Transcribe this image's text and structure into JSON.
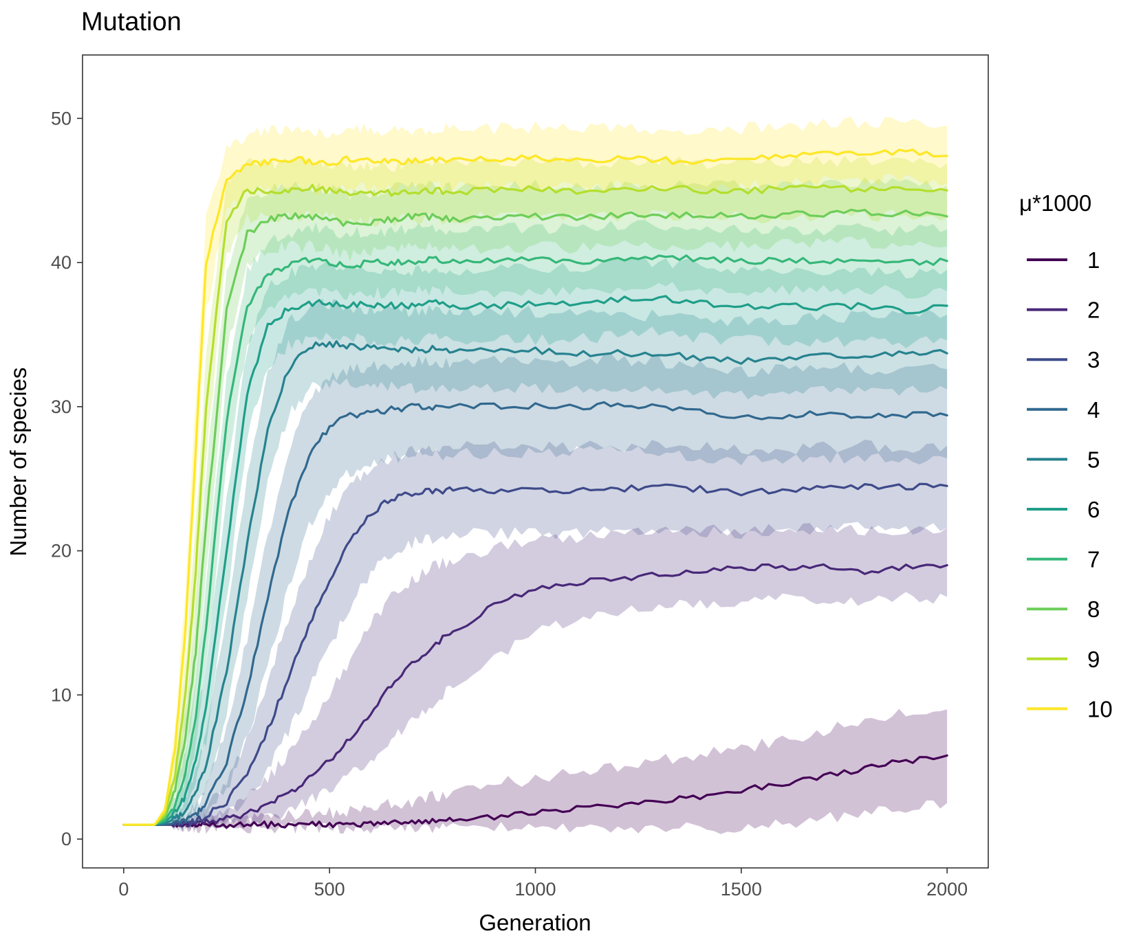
{
  "chart_data": {
    "type": "line",
    "title": "Mutation",
    "xlabel": "Generation",
    "ylabel": "Number of species",
    "xlim": [
      -100,
      2100
    ],
    "ylim": [
      -2,
      54.4
    ],
    "xticks": [
      0,
      500,
      1000,
      1500,
      2000
    ],
    "xtick_labels": [
      "0",
      "500",
      "1000",
      "1500",
      "2000"
    ],
    "yticks": [
      0,
      10,
      20,
      30,
      40,
      50
    ],
    "ytick_labels": [
      "0",
      "10",
      "20",
      "30",
      "40",
      "50"
    ],
    "grid": false,
    "legend": {
      "title": "μ*1000",
      "position": "right"
    },
    "band": "shaded ribbon around each mean line",
    "x_points": [
      0,
      25,
      50,
      75,
      100,
      125,
      150,
      175,
      200,
      250,
      300,
      350,
      400,
      450,
      500,
      550,
      600,
      650,
      700,
      750,
      800,
      900,
      1000,
      1100,
      1200,
      1300,
      1400,
      1500,
      1600,
      1700,
      1800,
      1900,
      2000
    ],
    "series": [
      {
        "name": "1",
        "color": "#440154",
        "values": [
          1,
          1,
          1,
          1,
          1,
          1,
          1,
          1,
          1,
          1,
          1,
          1,
          1,
          1,
          1,
          1.05,
          1.1,
          1.15,
          1.2,
          1.3,
          1.4,
          1.5,
          1.9,
          2.1,
          2.4,
          2.7,
          3.0,
          3.4,
          3.8,
          4.3,
          4.9,
          5.4,
          5.8
        ],
        "lower": [
          1,
          1,
          1,
          1,
          1,
          0.95,
          0.9,
          0.85,
          0.8,
          0.8,
          0.8,
          0.8,
          0.8,
          0.8,
          0.8,
          0.8,
          0.8,
          0.8,
          0.8,
          0.8,
          0.8,
          0.8,
          0.8,
          0.8,
          0.8,
          0.8,
          0.8,
          0.8,
          1.0,
          1.4,
          1.8,
          2.2,
          2.5
        ],
        "upper": [
          1,
          1,
          1,
          1,
          1,
          1.05,
          1.1,
          1.15,
          1.2,
          1.3,
          1.4,
          1.5,
          1.6,
          1.7,
          1.8,
          2.0,
          2.2,
          2.4,
          2.6,
          2.9,
          3.2,
          3.8,
          4.2,
          4.6,
          5.0,
          5.4,
          5.8,
          6.3,
          6.8,
          7.5,
          8.2,
          8.8,
          9.0
        ]
      },
      {
        "name": "2",
        "color": "#482878",
        "values": [
          1,
          1,
          1,
          1,
          1,
          1,
          1.05,
          1.1,
          1.2,
          1.4,
          1.8,
          2.4,
          3.2,
          4.2,
          5.4,
          7.0,
          8.8,
          10.6,
          12.2,
          13.4,
          14.4,
          16.2,
          17.3,
          17.8,
          18.0,
          18.3,
          18.6,
          18.8,
          18.9,
          18.9,
          18.6,
          18.9,
          19.0
        ],
        "lower": [
          1,
          1,
          1,
          1,
          1,
          0.95,
          0.9,
          0.9,
          0.9,
          1.0,
          1.1,
          1.4,
          1.9,
          2.6,
          3.4,
          4.5,
          5.6,
          6.9,
          8.2,
          9.4,
          10.6,
          12.6,
          14.3,
          15.2,
          15.7,
          16.1,
          16.3,
          16.5,
          16.6,
          16.7,
          16.6,
          16.7,
          16.8
        ],
        "upper": [
          1,
          1,
          1,
          1,
          1,
          1.05,
          1.2,
          1.3,
          1.5,
          2.0,
          3.0,
          4.2,
          5.8,
          7.8,
          10.0,
          12.5,
          15.0,
          16.8,
          18.0,
          18.8,
          19.4,
          20.2,
          20.6,
          20.9,
          21.1,
          21.3,
          21.4,
          21.4,
          21.5,
          21.5,
          21.3,
          21.5,
          21.6
        ]
      },
      {
        "name": "3",
        "color": "#3e4a89",
        "values": [
          1,
          1,
          1,
          1,
          1,
          1.05,
          1.1,
          1.3,
          1.6,
          2.6,
          4.6,
          7.6,
          11.2,
          14.8,
          18.0,
          20.8,
          22.6,
          23.6,
          24.0,
          24.1,
          24.2,
          24.2,
          24.2,
          24.2,
          24.3,
          24.4,
          24.3,
          24.0,
          24.2,
          24.4,
          24.5,
          24.4,
          24.5
        ],
        "lower": [
          1,
          1,
          1,
          1,
          1,
          0.95,
          0.95,
          1.0,
          1.1,
          1.6,
          2.8,
          4.8,
          7.4,
          10.4,
          13.4,
          16.2,
          18.4,
          19.8,
          20.5,
          20.9,
          21.1,
          21.2,
          21.2,
          21.3,
          21.4,
          21.5,
          21.4,
          21.2,
          21.3,
          21.5,
          21.6,
          21.5,
          21.6
        ],
        "upper": [
          1,
          1,
          1,
          1,
          1,
          1.1,
          1.3,
          1.7,
          2.3,
          4.0,
          7.0,
          11.0,
          15.2,
          19.2,
          22.4,
          24.6,
          25.8,
          26.5,
          26.9,
          27.1,
          27.2,
          27.2,
          27.2,
          27.2,
          27.3,
          27.3,
          27.2,
          27.0,
          27.1,
          27.2,
          27.3,
          27.2,
          27.3
        ]
      },
      {
        "name": "4",
        "color": "#31688e",
        "values": [
          1,
          1,
          1,
          1,
          1,
          1.1,
          1.3,
          1.7,
          2.5,
          5.4,
          10.4,
          16.8,
          22.6,
          26.6,
          28.6,
          29.4,
          29.6,
          29.8,
          30.0,
          30.0,
          30.0,
          30.0,
          30.1,
          30.0,
          30.2,
          30.0,
          29.6,
          29.2,
          29.4,
          29.5,
          29.4,
          29.4,
          29.4
        ],
        "lower": [
          1,
          1,
          1,
          1,
          1,
          1.0,
          1.0,
          1.2,
          1.6,
          3.4,
          7.0,
          12.0,
          17.4,
          21.6,
          24.2,
          25.4,
          26.0,
          26.4,
          26.6,
          26.7,
          26.7,
          26.8,
          26.8,
          26.8,
          26.9,
          26.8,
          26.5,
          26.2,
          26.4,
          26.5,
          26.4,
          26.4,
          26.4
        ],
        "upper": [
          1,
          1,
          1,
          1,
          1,
          1.2,
          1.6,
          2.3,
          3.6,
          7.8,
          14.0,
          21.0,
          26.8,
          30.4,
          32.0,
          32.6,
          32.8,
          33.0,
          33.1,
          33.1,
          33.1,
          33.1,
          33.2,
          33.1,
          33.3,
          33.1,
          32.8,
          32.4,
          32.6,
          32.7,
          32.6,
          32.6,
          32.6
        ]
      },
      {
        "name": "5",
        "color": "#26828e",
        "values": [
          1,
          1,
          1,
          1,
          1.1,
          1.4,
          2.0,
          3.2,
          5.2,
          11.6,
          20.6,
          28.4,
          32.6,
          34.2,
          34.4,
          34.2,
          34.1,
          34.0,
          33.9,
          34.0,
          33.9,
          33.8,
          33.9,
          33.7,
          33.7,
          33.6,
          33.4,
          33.2,
          33.4,
          33.5,
          33.6,
          33.7,
          33.7
        ],
        "lower": [
          1,
          1,
          1,
          1,
          1.0,
          1.1,
          1.4,
          2.2,
          3.6,
          8.6,
          16.8,
          24.8,
          29.4,
          31.2,
          31.6,
          31.6,
          31.5,
          31.4,
          31.3,
          31.4,
          31.3,
          31.3,
          31.3,
          31.2,
          31.2,
          31.1,
          30.9,
          30.7,
          30.9,
          31.0,
          31.1,
          31.2,
          31.2
        ],
        "upper": [
          1,
          1,
          1,
          1,
          1.2,
          1.8,
          2.8,
          4.6,
          7.4,
          15.2,
          25.0,
          32.2,
          35.8,
          37.0,
          37.1,
          36.9,
          36.8,
          36.7,
          36.6,
          36.7,
          36.6,
          36.5,
          36.6,
          36.4,
          36.4,
          36.3,
          36.1,
          35.9,
          36.1,
          36.2,
          36.3,
          36.4,
          36.4
        ]
      },
      {
        "name": "6",
        "color": "#1f9e89",
        "values": [
          1,
          1,
          1,
          1,
          1.2,
          1.8,
          3.0,
          5.4,
          9.2,
          20.0,
          31.0,
          35.6,
          36.8,
          37.2,
          37.2,
          37.0,
          37.1,
          37.0,
          37.0,
          37.2,
          37.0,
          37.0,
          37.1,
          37.1,
          37.4,
          37.6,
          37.2,
          37.0,
          37.0,
          36.9,
          37.0,
          36.6,
          37.0
        ],
        "lower": [
          1,
          1,
          1,
          1,
          1.0,
          1.3,
          2.0,
          3.8,
          6.8,
          16.6,
          27.8,
          32.8,
          34.3,
          34.7,
          34.8,
          34.6,
          34.7,
          34.6,
          34.6,
          34.8,
          34.6,
          34.6,
          34.7,
          34.7,
          35.0,
          35.2,
          34.8,
          34.6,
          34.6,
          34.5,
          34.6,
          34.3,
          34.6
        ],
        "upper": [
          1,
          1,
          1,
          1,
          1.4,
          2.4,
          4.2,
          7.6,
          12.4,
          23.6,
          34.0,
          38.2,
          39.3,
          39.7,
          39.7,
          39.5,
          39.6,
          39.5,
          39.5,
          39.7,
          39.5,
          39.5,
          39.6,
          39.6,
          39.9,
          40.1,
          39.7,
          39.5,
          39.5,
          39.4,
          39.5,
          39.1,
          39.5
        ]
      },
      {
        "name": "7",
        "color": "#35b779",
        "values": [
          1,
          1,
          1,
          1,
          1.3,
          2.4,
          4.6,
          8.6,
          14.8,
          29.0,
          37.0,
          39.2,
          39.8,
          40.2,
          40.0,
          39.8,
          40.0,
          40.0,
          40.1,
          40.2,
          40.0,
          40.1,
          40.2,
          40.1,
          40.3,
          40.4,
          40.2,
          40.1,
          40.2,
          40.1,
          40.2,
          40.0,
          40.1
        ],
        "lower": [
          1,
          1,
          1,
          1,
          1.1,
          1.8,
          3.2,
          6.4,
          11.8,
          25.8,
          34.4,
          37.0,
          37.7,
          38.1,
          37.9,
          37.7,
          37.9,
          37.9,
          38.0,
          38.1,
          37.9,
          38.0,
          38.1,
          38.0,
          38.2,
          38.3,
          38.1,
          38.0,
          38.1,
          38.0,
          38.1,
          37.9,
          38.0
        ],
        "upper": [
          1,
          1,
          1,
          1,
          1.5,
          3.0,
          6.0,
          10.8,
          17.8,
          32.0,
          39.4,
          41.4,
          42.0,
          42.4,
          42.2,
          42.0,
          42.2,
          42.2,
          42.3,
          42.4,
          42.2,
          42.3,
          42.4,
          42.3,
          42.5,
          42.6,
          42.4,
          42.3,
          42.4,
          42.3,
          42.4,
          42.2,
          42.3
        ]
      },
      {
        "name": "8",
        "color": "#6dcd59",
        "values": [
          1,
          1,
          1,
          1,
          1.5,
          3.4,
          7.0,
          13.0,
          21.8,
          36.6,
          42.0,
          43.0,
          43.2,
          43.2,
          43.0,
          42.6,
          42.8,
          43.0,
          43.2,
          43.2,
          43.0,
          43.1,
          43.2,
          43.1,
          43.3,
          43.2,
          43.3,
          43.2,
          43.3,
          43.4,
          43.5,
          43.4,
          43.2
        ],
        "lower": [
          1,
          1,
          1,
          1,
          1.2,
          2.6,
          5.2,
          10.2,
          18.2,
          33.8,
          39.8,
          40.9,
          41.1,
          41.1,
          40.9,
          40.5,
          40.7,
          40.9,
          41.1,
          41.1,
          40.9,
          41.0,
          41.1,
          41.0,
          41.2,
          41.1,
          41.2,
          41.1,
          41.2,
          41.3,
          41.4,
          41.3,
          41.1
        ],
        "upper": [
          1,
          1,
          1,
          1,
          1.8,
          4.2,
          8.8,
          15.8,
          25.4,
          39.4,
          44.2,
          45.1,
          45.3,
          45.3,
          45.1,
          44.7,
          44.9,
          45.1,
          45.3,
          45.3,
          45.1,
          45.2,
          45.3,
          45.2,
          45.4,
          45.3,
          45.4,
          45.3,
          45.4,
          45.5,
          45.6,
          45.5,
          45.3
        ]
      },
      {
        "name": "9",
        "color": "#b4de2c",
        "values": [
          1,
          1,
          1,
          1,
          1.7,
          4.6,
          10.0,
          18.6,
          30.0,
          43.0,
          45.0,
          45.0,
          45.0,
          45.2,
          45.0,
          44.8,
          44.8,
          44.8,
          44.8,
          45.0,
          44.9,
          45.0,
          45.1,
          45.0,
          45.1,
          45.2,
          45.0,
          45.0,
          45.1,
          45.2,
          45.0,
          45.2,
          45.0
        ],
        "lower": [
          1,
          1,
          1,
          1,
          1.3,
          3.6,
          7.8,
          15.4,
          26.4,
          40.6,
          43.0,
          43.1,
          43.1,
          43.3,
          43.1,
          42.9,
          42.9,
          42.9,
          42.9,
          43.1,
          43.0,
          43.1,
          43.2,
          43.1,
          43.2,
          43.3,
          43.1,
          43.1,
          43.2,
          43.3,
          43.1,
          43.3,
          43.1
        ],
        "upper": [
          1,
          1,
          1,
          1,
          2.1,
          5.6,
          12.2,
          21.8,
          33.6,
          45.4,
          47.0,
          46.9,
          46.9,
          47.1,
          46.9,
          46.7,
          46.7,
          46.7,
          46.7,
          46.9,
          46.8,
          46.9,
          47.0,
          46.9,
          47.0,
          47.1,
          46.9,
          46.9,
          47.0,
          47.1,
          46.9,
          47.1,
          46.9
        ]
      },
      {
        "name": "10",
        "color": "#fde725",
        "values": [
          1,
          1,
          1,
          1,
          2.0,
          6.4,
          14.6,
          27.0,
          40.0,
          45.8,
          46.8,
          47.0,
          47.2,
          47.0,
          46.8,
          47.2,
          47.1,
          47.0,
          47.0,
          47.1,
          47.2,
          47.2,
          47.3,
          47.1,
          47.2,
          47.1,
          47.0,
          47.2,
          47.4,
          47.5,
          47.6,
          47.7,
          47.4
        ],
        "lower": [
          1,
          1,
          1,
          1,
          1.6,
          5.2,
          12.2,
          23.8,
          36.6,
          43.8,
          44.9,
          45.1,
          45.3,
          45.1,
          44.9,
          45.3,
          45.2,
          45.1,
          45.1,
          45.2,
          45.3,
          45.3,
          45.4,
          45.2,
          45.3,
          45.2,
          45.1,
          45.3,
          45.5,
          45.6,
          45.7,
          45.8,
          45.5
        ],
        "upper": [
          1,
          1,
          1,
          1,
          2.4,
          7.8,
          17.4,
          30.4,
          43.2,
          48.0,
          48.9,
          49.1,
          49.3,
          49.1,
          48.9,
          49.3,
          49.2,
          49.1,
          49.1,
          49.2,
          49.3,
          49.3,
          49.4,
          49.2,
          49.3,
          49.2,
          49.1,
          49.3,
          49.5,
          49.6,
          49.7,
          49.8,
          49.5
        ]
      }
    ]
  }
}
